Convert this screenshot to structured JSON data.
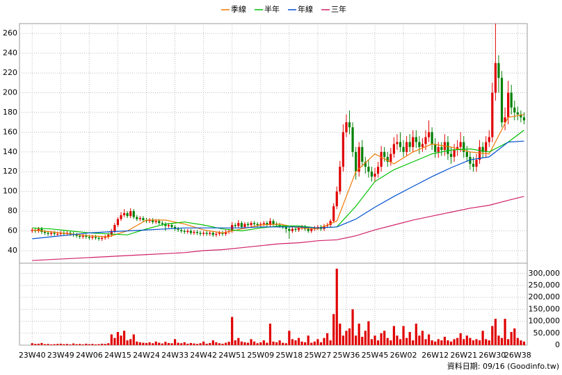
{
  "chart_data": {
    "type": "candlestick",
    "categories": [
      "23W40",
      null,
      null,
      null,
      null,
      null,
      null,
      null,
      null,
      "23W49",
      null,
      null,
      null,
      null,
      null,
      null,
      null,
      null,
      "24W06",
      null,
      null,
      null,
      null,
      null,
      null,
      null,
      null,
      "24W15",
      null,
      null,
      null,
      null,
      null,
      null,
      null,
      null,
      "24W24",
      null,
      null,
      null,
      null,
      null,
      null,
      null,
      null,
      "24W33",
      null,
      null,
      null,
      null,
      null,
      null,
      null,
      null,
      "24W42",
      null,
      null,
      null,
      null,
      null,
      null,
      null,
      null,
      "24W51",
      null,
      null,
      null,
      null,
      null,
      null,
      null,
      null,
      "25W09",
      null,
      null,
      null,
      null,
      null,
      null,
      null,
      null,
      "25W18",
      null,
      null,
      null,
      null,
      null,
      null,
      null,
      null,
      "25W27",
      null,
      null,
      null,
      null,
      null,
      null,
      null,
      null,
      "25W36",
      null,
      null,
      null,
      null,
      null,
      null,
      null,
      null,
      "25W45",
      null,
      null,
      null,
      null,
      null,
      null,
      null,
      null,
      "26W02",
      null,
      null,
      null,
      null,
      null,
      null,
      null,
      null,
      null,
      "26W12",
      null,
      null,
      null,
      null,
      null,
      null,
      null,
      null,
      "26W21",
      null,
      null,
      null,
      null,
      null,
      null,
      null,
      null,
      "26W30",
      null,
      null,
      null,
      null,
      null,
      null,
      null,
      "26W38",
      null,
      null
    ],
    "open": [
      60,
      61,
      60,
      62,
      59,
      58,
      57,
      58,
      57,
      57,
      58,
      57,
      58,
      57,
      56,
      55,
      54,
      55,
      54,
      53,
      54,
      53,
      52,
      53,
      54,
      56,
      60,
      66,
      72,
      76,
      78,
      75,
      80,
      74,
      72,
      73,
      71,
      70,
      71,
      69,
      70,
      68,
      67,
      65,
      66,
      64,
      62,
      61,
      60,
      59,
      60,
      58,
      59,
      58,
      57,
      58,
      57,
      58,
      56,
      57,
      58,
      57,
      59,
      60,
      66,
      65,
      68,
      64,
      67,
      66,
      68,
      67,
      66,
      67,
      68,
      66,
      70,
      67,
      66,
      65,
      64,
      62,
      60,
      62,
      61,
      63,
      64,
      62,
      60,
      62,
      63,
      64,
      62,
      65,
      66,
      70,
      85,
      100,
      125,
      160,
      170,
      165,
      140,
      120,
      145,
      130,
      125,
      120,
      115,
      118,
      125,
      140,
      135,
      130,
      138,
      148,
      150,
      145,
      140,
      150,
      145,
      155,
      150,
      145,
      148,
      155,
      160,
      148,
      140,
      145,
      142,
      150,
      138,
      135,
      142,
      145,
      150,
      140,
      135,
      128,
      125,
      132,
      145,
      140,
      150,
      155,
      200,
      230,
      215,
      170,
      175,
      200,
      185,
      180,
      178,
      175
    ],
    "high": [
      63,
      63,
      64,
      64,
      61,
      60,
      60,
      60,
      59,
      60,
      60,
      60,
      60,
      59,
      58,
      57,
      57,
      57,
      56,
      56,
      56,
      55,
      55,
      56,
      58,
      62,
      68,
      74,
      79,
      82,
      80,
      83,
      82,
      76,
      75,
      75,
      73,
      73,
      73,
      72,
      72,
      70,
      69,
      68,
      68,
      66,
      64,
      63,
      62,
      62,
      62,
      61,
      61,
      60,
      60,
      60,
      60,
      60,
      59,
      60,
      60,
      61,
      62,
      69,
      68,
      71,
      70,
      69,
      69,
      70,
      70,
      69,
      69,
      70,
      70,
      73,
      72,
      69,
      68,
      67,
      66,
      64,
      64,
      64,
      65,
      66,
      66,
      64,
      64,
      65,
      66,
      66,
      67,
      68,
      72,
      88,
      105,
      131,
      168,
      178,
      182,
      170,
      145,
      150,
      152,
      135,
      132,
      125,
      124,
      130,
      146,
      145,
      140,
      144,
      155,
      158,
      160,
      152,
      156,
      158,
      162,
      162,
      156,
      154,
      162,
      172,
      165,
      154,
      150,
      150,
      158,
      156,
      145,
      148,
      152,
      160,
      156,
      146,
      140,
      135,
      138,
      152,
      150,
      156,
      162,
      210,
      270,
      238,
      222,
      185,
      212,
      208,
      192,
      186,
      182,
      180
    ],
    "low": [
      58,
      58,
      58,
      57,
      56,
      55,
      55,
      55,
      55,
      55,
      55,
      55,
      55,
      54,
      53,
      52,
      52,
      52,
      51,
      51,
      51,
      50,
      50,
      51,
      52,
      54,
      58,
      64,
      70,
      74,
      73,
      73,
      72,
      70,
      70,
      69,
      68,
      68,
      67,
      67,
      66,
      65,
      60,
      63,
      62,
      60,
      59,
      58,
      57,
      57,
      56,
      56,
      56,
      55,
      55,
      55,
      55,
      54,
      54,
      55,
      55,
      55,
      57,
      58,
      63,
      63,
      62,
      62,
      64,
      64,
      65,
      64,
      64,
      65,
      64,
      64,
      65,
      64,
      63,
      62,
      58,
      52,
      58,
      59,
      59,
      61,
      60,
      58,
      58,
      60,
      61,
      60,
      60,
      63,
      64,
      68,
      82,
      97,
      120,
      155,
      158,
      135,
      112,
      115,
      125,
      118,
      114,
      110,
      110,
      114,
      120,
      130,
      125,
      126,
      134,
      142,
      140,
      135,
      136,
      140,
      140,
      144,
      138,
      140,
      142,
      150,
      142,
      134,
      134,
      136,
      136,
      132,
      128,
      130,
      136,
      140,
      134,
      130,
      122,
      120,
      120,
      128,
      134,
      134,
      145,
      150,
      192,
      200,
      165,
      162,
      168,
      178,
      172,
      172,
      170,
      168
    ],
    "close": [
      61,
      60,
      62,
      59,
      58,
      57,
      58,
      57,
      57,
      58,
      57,
      58,
      57,
      56,
      55,
      54,
      55,
      54,
      53,
      54,
      53,
      52,
      53,
      54,
      56,
      60,
      66,
      72,
      76,
      78,
      75,
      80,
      74,
      72,
      73,
      71,
      70,
      71,
      69,
      70,
      68,
      67,
      65,
      66,
      64,
      62,
      61,
      60,
      59,
      60,
      58,
      59,
      58,
      57,
      58,
      57,
      58,
      56,
      57,
      58,
      57,
      59,
      60,
      66,
      65,
      68,
      64,
      67,
      66,
      68,
      67,
      66,
      67,
      68,
      66,
      70,
      67,
      66,
      65,
      64,
      62,
      60,
      62,
      61,
      63,
      64,
      62,
      60,
      62,
      63,
      64,
      62,
      65,
      66,
      70,
      85,
      100,
      125,
      160,
      170,
      165,
      140,
      120,
      145,
      130,
      125,
      120,
      115,
      118,
      125,
      140,
      135,
      130,
      138,
      148,
      150,
      145,
      140,
      150,
      145,
      155,
      150,
      145,
      148,
      155,
      160,
      148,
      140,
      145,
      142,
      150,
      138,
      135,
      142,
      145,
      150,
      140,
      135,
      128,
      125,
      132,
      145,
      140,
      150,
      155,
      200,
      230,
      215,
      170,
      175,
      200,
      185,
      180,
      178,
      175,
      172
    ],
    "volume": [
      8000,
      5000,
      6000,
      9000,
      4000,
      5000,
      3000,
      4000,
      5000,
      6000,
      4000,
      5000,
      3000,
      7000,
      4000,
      5000,
      3000,
      6000,
      4000,
      5000,
      3000,
      4000,
      6000,
      5000,
      8000,
      45000,
      30000,
      55000,
      40000,
      60000,
      20000,
      25000,
      45000,
      15000,
      12000,
      10000,
      9000,
      12000,
      8000,
      15000,
      10000,
      7000,
      14000,
      9000,
      8000,
      25000,
      10000,
      8000,
      12000,
      6000,
      9000,
      7000,
      5000,
      8000,
      15000,
      6000,
      9000,
      20000,
      12000,
      8000,
      6000,
      10000,
      14000,
      118000,
      20000,
      30000,
      15000,
      12000,
      10000,
      25000,
      15000,
      8000,
      12000,
      20000,
      10000,
      90000,
      15000,
      12000,
      20000,
      10000,
      8000,
      60000,
      25000,
      20000,
      30000,
      15000,
      12000,
      40000,
      10000,
      15000,
      25000,
      12000,
      30000,
      50000,
      20000,
      130000,
      320000,
      90000,
      40000,
      60000,
      70000,
      150000,
      40000,
      90000,
      35000,
      60000,
      100000,
      25000,
      40000,
      20000,
      50000,
      60000,
      30000,
      20000,
      80000,
      40000,
      25000,
      80000,
      30000,
      55000,
      20000,
      90000,
      40000,
      60000,
      25000,
      45000,
      20000,
      15000,
      25000,
      20000,
      35000,
      20000,
      15000,
      25000,
      30000,
      50000,
      25000,
      40000,
      30000,
      20000,
      25000,
      20000,
      60000,
      25000,
      20000,
      80000,
      110000,
      40000,
      30000,
      110000,
      25000,
      55000,
      70000,
      30000,
      20000,
      15000
    ],
    "up_color": "#e00000",
    "down_color": "#008000",
    "volume_color": "#e00000",
    "series": [
      {
        "name": "季線",
        "color": "#f07800",
        "x": [
          0,
          6,
          12,
          18,
          24,
          30,
          36,
          42,
          48,
          54,
          60,
          66,
          72,
          78,
          84,
          90,
          96,
          102,
          108,
          114,
          120,
          126,
          132,
          138,
          144,
          150,
          155
        ],
        "values": [
          61,
          59,
          57,
          55,
          54,
          60,
          71,
          71,
          67,
          61,
          58,
          62,
          66,
          67,
          63,
          62,
          70,
          120,
          138,
          128,
          140,
          148,
          145,
          140,
          138,
          175,
          178
        ]
      },
      {
        "name": "半年",
        "color": "#00c000",
        "x": [
          0,
          6,
          12,
          18,
          24,
          30,
          36,
          42,
          48,
          54,
          60,
          66,
          72,
          78,
          84,
          90,
          96,
          102,
          108,
          114,
          120,
          126,
          132,
          138,
          144,
          150,
          155
        ],
        "values": [
          63,
          62,
          60,
          58,
          57,
          56,
          62,
          67,
          69,
          66,
          62,
          60,
          63,
          65,
          65,
          63,
          64,
          85,
          110,
          122,
          130,
          138,
          142,
          143,
          140,
          150,
          162
        ]
      },
      {
        "name": "年線",
        "color": "#0050d0",
        "x": [
          0,
          6,
          12,
          18,
          24,
          30,
          36,
          42,
          48,
          54,
          60,
          66,
          72,
          78,
          84,
          90,
          96,
          102,
          108,
          114,
          120,
          126,
          132,
          138,
          144,
          150,
          155
        ],
        "values": [
          52,
          54,
          56,
          58,
          59,
          60,
          61,
          62,
          63,
          63,
          63,
          63,
          64,
          64,
          64,
          63,
          64,
          72,
          84,
          95,
          105,
          115,
          124,
          132,
          135,
          150,
          151
        ]
      },
      {
        "name": "三年",
        "color": "#d0206a",
        "x": [
          0,
          6,
          12,
          18,
          24,
          30,
          36,
          42,
          48,
          54,
          60,
          66,
          72,
          78,
          84,
          90,
          96,
          102,
          108,
          114,
          120,
          126,
          132,
          138,
          144,
          150,
          155
        ],
        "values": [
          30,
          31,
          32,
          33,
          34,
          35,
          36,
          37,
          38,
          40,
          41,
          43,
          45,
          47,
          48,
          50,
          51,
          55,
          61,
          66,
          71,
          75,
          79,
          83,
          86,
          91,
          95
        ]
      }
    ],
    "ylim": [
      28,
      270
    ],
    "yticks": [
      40,
      60,
      80,
      100,
      120,
      140,
      160,
      180,
      200,
      220,
      240,
      260
    ],
    "vlim": [
      0,
      340000
    ],
    "vticks": [
      0,
      {
        "value": 50000,
        "label": "50,000"
      },
      {
        "value": 100000,
        "label": "100,000"
      },
      {
        "value": 150000,
        "label": "150,000"
      },
      {
        "value": 200000,
        "label": "200,000"
      },
      {
        "value": 250000,
        "label": "250,000"
      },
      {
        "value": 300000,
        "label": "300,000"
      }
    ],
    "grid": true,
    "footnote": "資料日期: 09/16 (Goodinfo.tw)"
  }
}
